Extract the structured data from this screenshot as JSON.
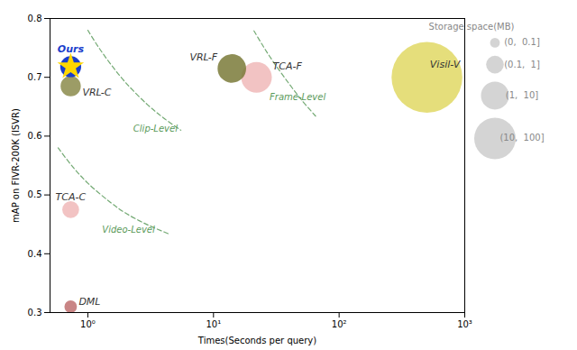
{
  "chart_data": {
    "type": "scatter",
    "xlabel": "Times(Seconds per query)",
    "ylabel": "mAP on FIVR-200K (ISVR)",
    "log": "x",
    "xlim": [
      0.5,
      1000
    ],
    "xticks": [
      {
        "value": 1,
        "label": "10⁰"
      },
      {
        "value": 10,
        "label": "10¹"
      },
      {
        "value": 100,
        "label": "10²"
      },
      {
        "value": 1000,
        "label": "10³"
      }
    ],
    "ylim": [
      0.3,
      0.8
    ],
    "yticks": [
      0.3,
      0.4,
      0.5,
      0.6,
      0.7,
      0.8
    ],
    "points": [
      {
        "name": "VRL-C",
        "x": 0.73,
        "y": 0.685,
        "size": 260,
        "color": "#8B8B4B"
      },
      {
        "name": "VRL-F",
        "x": 14,
        "y": 0.715,
        "size": 520,
        "color": "#7a7a38"
      },
      {
        "name": "TCA-F",
        "x": 22,
        "y": 0.7,
        "size": 600,
        "color": "#f0b8b8"
      },
      {
        "name": "TCA-C",
        "x": 0.73,
        "y": 0.475,
        "size": 180,
        "color": "#f0b8b8"
      },
      {
        "name": "DML",
        "x": 0.73,
        "y": 0.31,
        "size": 100,
        "color": "#c07070"
      },
      {
        "name": "Visil-V",
        "x": 500,
        "y": 0.7,
        "size": 3200,
        "color": "#e0d864"
      },
      {
        "name": "Ours",
        "x": 0.73,
        "y": 0.718,
        "size": 280,
        "colors": [
          "#1a3ecc",
          "#FFD700"
        ],
        "marker": "star"
      }
    ],
    "annotations": [
      {
        "text": "Frame-Level",
        "x": 28,
        "y": 0.666,
        "color": "#5a9a5a"
      },
      {
        "text": "Clip-Level",
        "x": 2.3,
        "y": 0.612,
        "color": "#5a9a5a"
      },
      {
        "text": "Video-Level",
        "x": 1.3,
        "y": 0.44,
        "color": "#5a9a5a"
      }
    ],
    "curves": [
      {
        "x": [
          1,
          1.2,
          1.5,
          2,
          3,
          4,
          5.5
        ],
        "y": [
          0.78,
          0.753,
          0.724,
          0.691,
          0.653,
          0.631,
          0.61
        ],
        "color": "#5a9a5a",
        "line_style": "dashed"
      },
      {
        "x": [
          21,
          25,
          30,
          40,
          50,
          65
        ],
        "y": [
          0.779,
          0.752,
          0.726,
          0.689,
          0.662,
          0.634
        ],
        "color": "#5a9a5a",
        "line_style": "dashed"
      },
      {
        "x": [
          0.58,
          0.75,
          1,
          1.5,
          2,
          3,
          4.5
        ],
        "y": [
          0.58,
          0.549,
          0.52,
          0.488,
          0.469,
          0.449,
          0.433
        ],
        "color": "#5a9a5a",
        "line_style": "dashed"
      }
    ],
    "size_legend": {
      "title": "Storage space(MB)",
      "items": [
        {
          "label": "(0,  0.1]",
          "size": 60
        },
        {
          "label": "(0.1,  1]",
          "size": 200
        },
        {
          "label": "(1,  10]",
          "size": 500
        },
        {
          "label": "(10,  100]",
          "size": 1100
        }
      ],
      "color": "#cccccc"
    }
  }
}
